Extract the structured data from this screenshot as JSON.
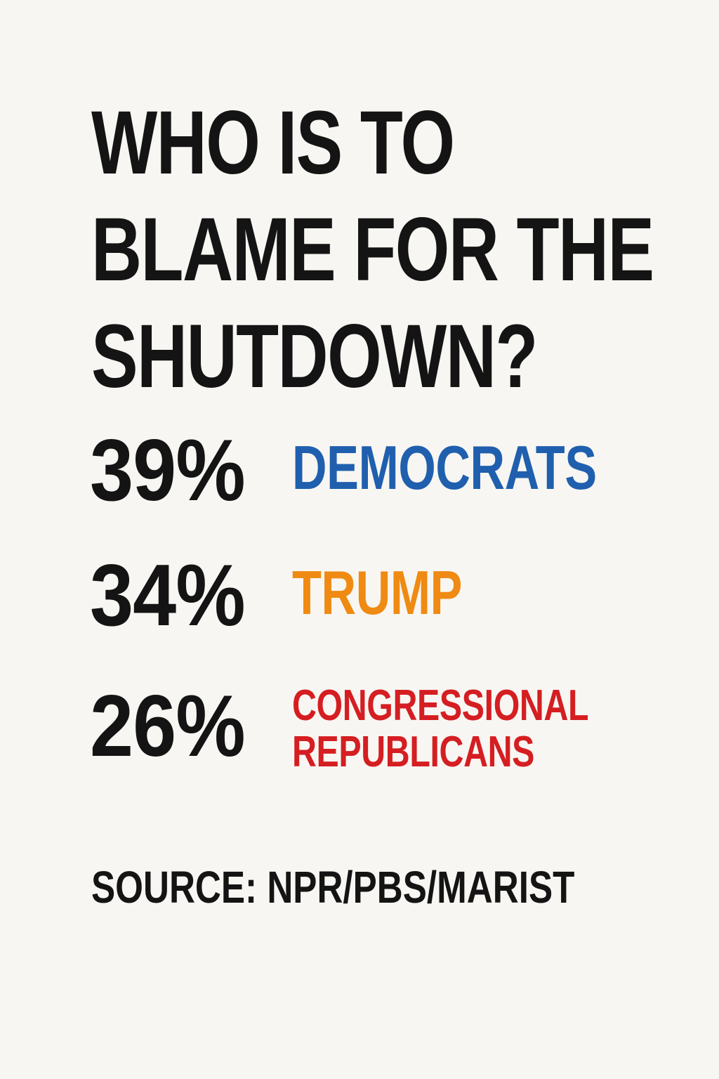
{
  "headline": {
    "line1": "WHO IS TO",
    "line2": "BLAME FOR THE",
    "line3": "SHUTDOWN?"
  },
  "results": [
    {
      "percent": "39%",
      "label_lines": [
        "DEMOCRATS"
      ],
      "color": "#1f5fae"
    },
    {
      "percent": "34%",
      "label_lines": [
        "TRUMP"
      ],
      "color": "#ef8a12"
    },
    {
      "percent": "26%",
      "label_lines": [
        "CONGRESSIONAL",
        "REPUBLICANS"
      ],
      "color": "#d51e22"
    }
  ],
  "source": "SOURCE: NPR/PBS/MARIST",
  "colors": {
    "background": "#f8f6f2",
    "text": "#141414"
  }
}
